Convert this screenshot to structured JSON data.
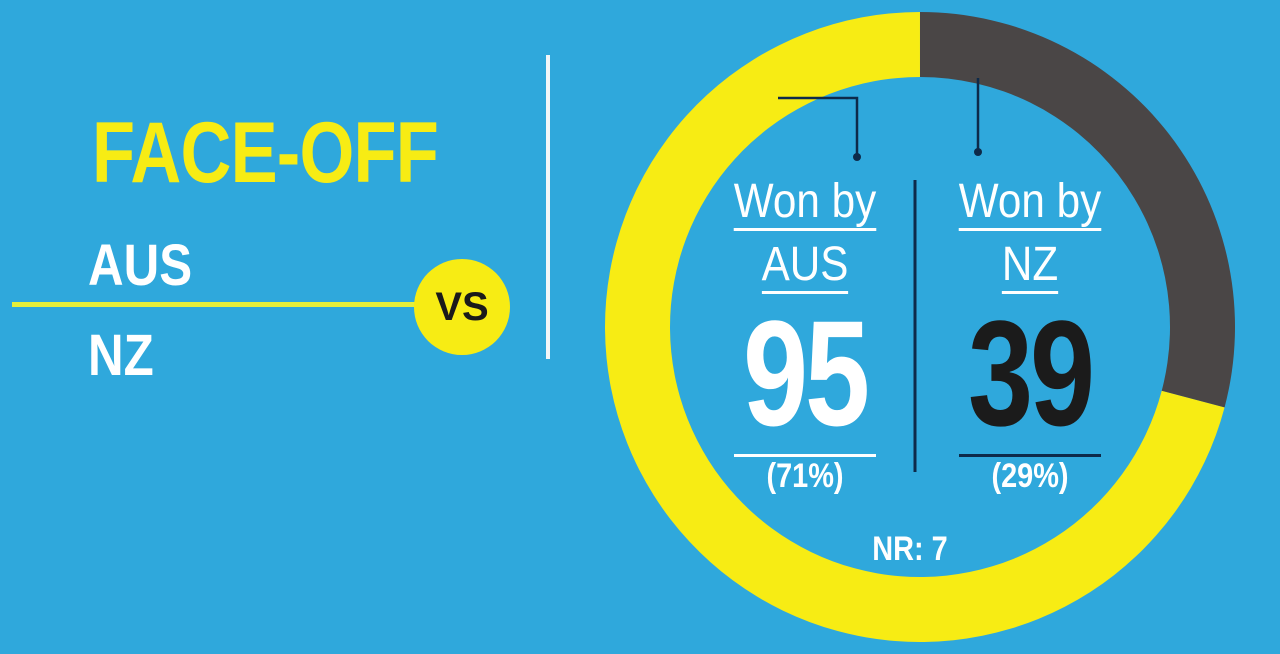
{
  "heading": {
    "title": "FACE-OFF",
    "team1": "AUS",
    "team2": "NZ",
    "vs": "VS"
  },
  "colors": {
    "background": "#2fa8dc",
    "accent": "#f7ec14",
    "nz_segment": "#4a4646",
    "white": "#ffffff"
  },
  "chart_data": {
    "type": "pie",
    "style": "donut",
    "series": [
      {
        "name": "Won by AUS",
        "value": 95,
        "percent": "(71%)",
        "color": "#f7ec14"
      },
      {
        "name": "Won by NZ",
        "value": 39,
        "percent": "(29%)",
        "color": "#4a4646"
      }
    ],
    "no_result": {
      "label": "NR: 7",
      "value": 7
    }
  },
  "labels": {
    "aus": {
      "won_by": "Won by",
      "team": "AUS",
      "value": "95",
      "percent": "(71%)"
    },
    "nz": {
      "won_by": "Won by",
      "team": "NZ",
      "value": "39",
      "percent": "(29%)"
    },
    "nr": "NR: 7"
  }
}
